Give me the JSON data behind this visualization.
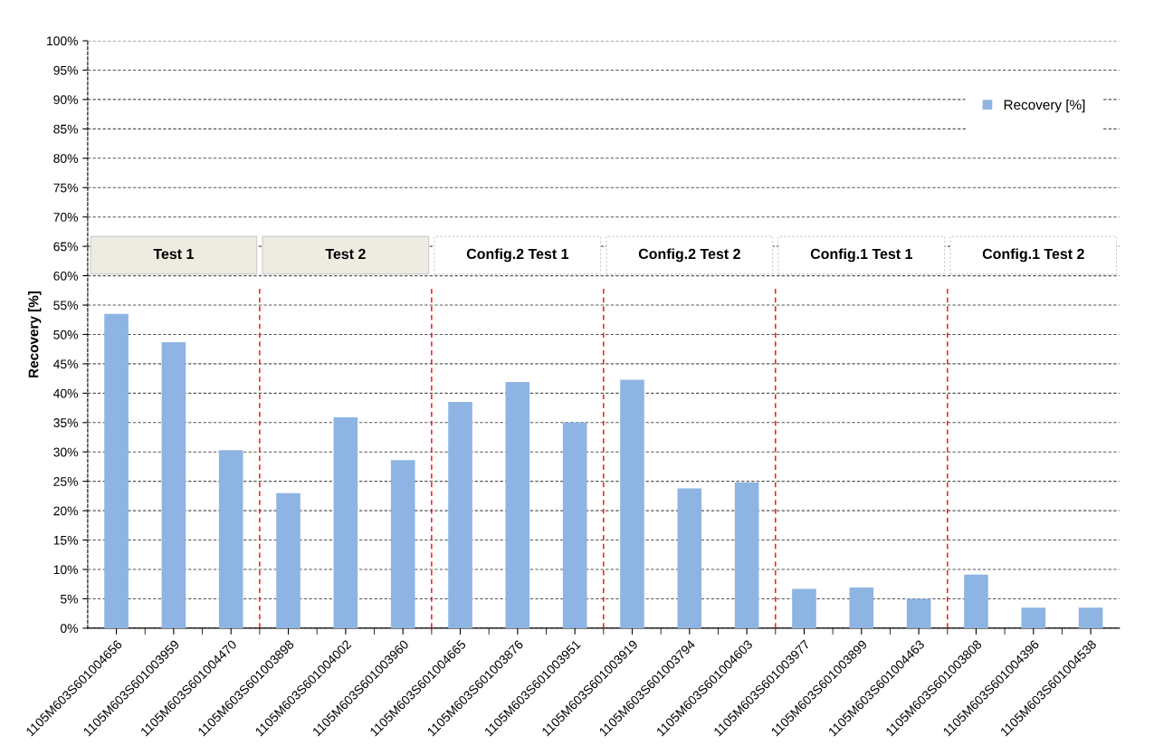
{
  "chart_data": {
    "type": "bar",
    "ylabel": "Recovery [%]",
    "categories": [
      "1105M603S601004656",
      "1105M603S601003959",
      "1105M603S601004470",
      "1105M603S601003898",
      "1105M603S601004002",
      "1105M603S601003960",
      "1105M603S601004665",
      "1105M603S601003876",
      "1105M603S601003951",
      "1105M603S601003919",
      "1105M603S601003794",
      "1105M603S601004603",
      "1105M603S601003977",
      "1105M603S601003899",
      "1105M603S601004463",
      "1105M603S601003808",
      "1105M603S601004396",
      "1105M603S601004538"
    ],
    "series": [
      {
        "name": "Recovery [%]",
        "color": "#8db4e2",
        "values": [
          53.5,
          48.7,
          30.3,
          23.0,
          35.9,
          28.6,
          38.5,
          41.9,
          35.0,
          42.3,
          23.8,
          24.8,
          6.7,
          6.9,
          5.0,
          9.1,
          3.5,
          3.5
        ]
      }
    ],
    "ylim": [
      0,
      100
    ],
    "yticks": [
      {
        "value": 0,
        "label": "0%"
      },
      {
        "value": 5,
        "label": "5%"
      },
      {
        "value": 10,
        "label": "10%"
      },
      {
        "value": 15,
        "label": "15%"
      },
      {
        "value": 20,
        "label": "20%"
      },
      {
        "value": 25,
        "label": "25%"
      },
      {
        "value": 30,
        "label": "30%"
      },
      {
        "value": 35,
        "label": "35%"
      },
      {
        "value": 40,
        "label": "40%"
      },
      {
        "value": 45,
        "label": "45%"
      },
      {
        "value": 50,
        "label": "50%"
      },
      {
        "value": 55,
        "label": "55%"
      },
      {
        "value": 60,
        "label": "60%"
      },
      {
        "value": 65,
        "label": "65%"
      },
      {
        "value": 70,
        "label": "70%"
      },
      {
        "value": 75,
        "label": "75%"
      },
      {
        "value": 80,
        "label": "80%"
      },
      {
        "value": 85,
        "label": "85%"
      },
      {
        "value": 90,
        "label": "90%"
      },
      {
        "value": 95,
        "label": "95%"
      },
      {
        "value": 100,
        "label": "100%"
      }
    ],
    "grid": "y",
    "legend": "top right",
    "annotations": [
      "Test 1",
      "Test 2",
      "Config.2 Test 1",
      "Config.2 Test 2",
      "Config.1 Test 1",
      "Config.1 Test 2"
    ]
  }
}
